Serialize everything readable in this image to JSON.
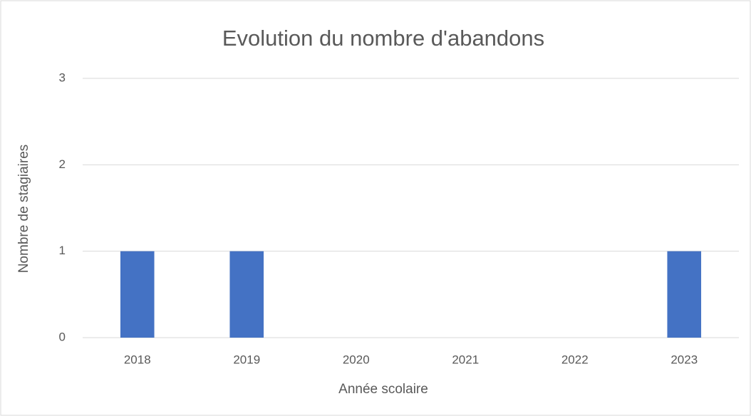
{
  "chart_data": {
    "type": "bar",
    "title": "Evolution du nombre d'abandons",
    "x_label": "Année scolaire",
    "y_label": "Nombre de stagiaires",
    "categories": [
      "2018",
      "2019",
      "2020",
      "2021",
      "2022",
      "2023"
    ],
    "values": [
      1,
      1,
      0,
      0,
      0,
      1
    ],
    "color": "#4472c4",
    "ylim": [
      0,
      3
    ],
    "yticks": [
      0,
      1,
      2,
      3
    ],
    "grid": true
  }
}
